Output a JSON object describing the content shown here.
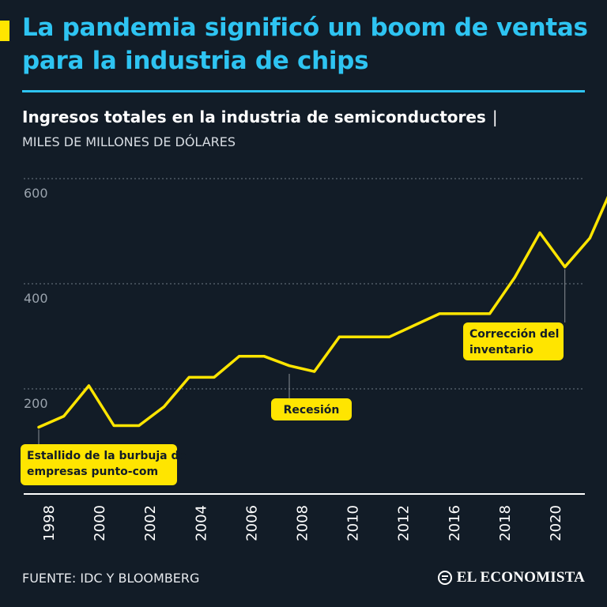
{
  "header": {
    "title": "La pandemia significó un boom de ventas para la industria de chips",
    "subtitle": "Ingresos totales en la industria de semiconductores",
    "separator": "|",
    "units": "MILES DE MILLONES DE DÓLARES"
  },
  "footer": {
    "source": "FUENTE: IDC Y BLOOMBERG",
    "brand": "EL ECONOMISTA"
  },
  "colors": {
    "background": "#121c27",
    "title": "#2ec4f2",
    "line": "#ffe500",
    "text": "#ffffff"
  },
  "chart_data": {
    "type": "line",
    "title": "Ingresos totales en la industria de semiconductores",
    "ylabel": "MILES DE MILLONES DE DÓLARES",
    "xlabel": "",
    "ylim": [
      0,
      600
    ],
    "yticks": [
      200,
      400,
      600
    ],
    "xtick_labels": [
      "1998",
      "2000",
      "2002",
      "2004",
      "2006",
      "2008",
      "2010",
      "2012",
      "2016",
      "2018",
      "2020"
    ],
    "grid": true,
    "series": [
      {
        "name": "Ingresos",
        "x": [
          1998,
          1999,
          2000,
          2001,
          2002,
          2003,
          2004,
          2005,
          2006,
          2007,
          2008,
          2009,
          2010,
          2011,
          2012,
          2013,
          2014,
          2015,
          2016,
          2017,
          2018,
          2019,
          2020,
          2021
        ],
        "values": [
          127,
          148,
          206,
          130,
          130,
          166,
          222,
          222,
          262,
          262,
          244,
          233,
          299,
          299,
          299,
          321,
          343,
          343,
          343,
          412,
          497,
          432,
          487,
          595
        ]
      }
    ],
    "annotations": [
      {
        "text": "Estallido de la burbuja de empresas punto-com",
        "x": 1998,
        "y": 127
      },
      {
        "text": "Recesión",
        "x": 2008,
        "y": 233
      },
      {
        "text": "Corrección del inventario",
        "x": 2019,
        "y": 432
      }
    ]
  }
}
